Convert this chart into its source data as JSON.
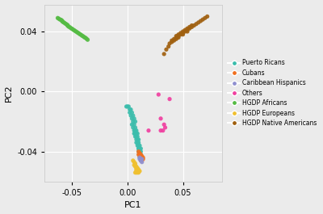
{
  "title": "",
  "xlabel": "PC1",
  "ylabel": "PC2",
  "xlim": [
    -0.075,
    0.085
  ],
  "ylim": [
    -0.06,
    0.058
  ],
  "xticks": [
    -0.05,
    0.0,
    0.05
  ],
  "yticks": [
    -0.04,
    0.0,
    0.04
  ],
  "background_color": "#ebebeb",
  "grid_color": "#ffffff",
  "groups": {
    "Puerto Ricans": {
      "color": "#3cbdac",
      "points": [
        [
          0.003,
          -0.016
        ],
        [
          0.004,
          -0.018
        ],
        [
          0.005,
          -0.02
        ],
        [
          0.004,
          -0.022
        ],
        [
          0.005,
          -0.024
        ],
        [
          0.006,
          -0.026
        ],
        [
          0.006,
          -0.028
        ],
        [
          0.007,
          -0.028
        ],
        [
          0.007,
          -0.03
        ],
        [
          0.008,
          -0.03
        ],
        [
          0.008,
          -0.032
        ],
        [
          0.009,
          -0.032
        ],
        [
          0.009,
          -0.034
        ],
        [
          0.01,
          -0.034
        ],
        [
          0.01,
          -0.036
        ],
        [
          0.01,
          -0.038
        ],
        [
          0.011,
          -0.038
        ],
        [
          0.011,
          -0.04
        ],
        [
          0.011,
          -0.042
        ],
        [
          0.012,
          -0.042
        ],
        [
          0.002,
          -0.012
        ],
        [
          0.001,
          -0.01
        ],
        [
          0.0,
          -0.01
        ],
        [
          -0.001,
          -0.01
        ],
        [
          0.002,
          -0.014
        ],
        [
          0.003,
          -0.012
        ],
        [
          0.004,
          -0.014
        ],
        [
          0.005,
          -0.016
        ],
        [
          0.006,
          -0.018
        ],
        [
          0.007,
          -0.02
        ],
        [
          0.007,
          -0.024
        ],
        [
          0.008,
          -0.026
        ],
        [
          0.008,
          -0.028
        ],
        [
          0.009,
          -0.028
        ],
        [
          0.009,
          -0.03
        ],
        [
          0.01,
          -0.032
        ],
        [
          0.01,
          -0.04
        ],
        [
          0.011,
          -0.036
        ],
        [
          0.012,
          -0.038
        ],
        [
          0.011,
          -0.044
        ],
        [
          0.012,
          -0.04
        ],
        [
          0.006,
          -0.022
        ],
        [
          0.007,
          -0.026
        ],
        [
          0.008,
          -0.034
        ],
        [
          0.009,
          -0.036
        ],
        [
          0.01,
          -0.038
        ]
      ]
    },
    "Cubans": {
      "color": "#f07020",
      "points": [
        [
          0.01,
          -0.04
        ],
        [
          0.011,
          -0.041
        ],
        [
          0.012,
          -0.042
        ],
        [
          0.012,
          -0.043
        ],
        [
          0.013,
          -0.043
        ],
        [
          0.013,
          -0.044
        ],
        [
          0.014,
          -0.044
        ],
        [
          0.013,
          -0.045
        ],
        [
          0.014,
          -0.045
        ],
        [
          0.011,
          -0.042
        ],
        [
          0.012,
          -0.044
        ],
        [
          0.013,
          -0.046
        ],
        [
          0.012,
          -0.046
        ],
        [
          0.011,
          -0.043
        ],
        [
          0.01,
          -0.042
        ]
      ]
    },
    "Caribbean Hispanics": {
      "color": "#9090d0",
      "points": [
        [
          0.011,
          -0.044
        ],
        [
          0.012,
          -0.045
        ],
        [
          0.012,
          -0.046
        ],
        [
          0.013,
          -0.045
        ],
        [
          0.011,
          -0.045
        ],
        [
          0.013,
          -0.047
        ]
      ]
    },
    "Others": {
      "color": "#f040a0",
      "points": [
        [
          0.028,
          -0.002
        ],
        [
          0.038,
          -0.005
        ],
        [
          0.03,
          -0.018
        ],
        [
          0.033,
          -0.022
        ],
        [
          0.034,
          -0.024
        ],
        [
          0.032,
          -0.026
        ],
        [
          0.03,
          -0.026
        ],
        [
          0.019,
          -0.026
        ]
      ]
    },
    "HGDP Africans": {
      "color": "#55bb44",
      "points": [
        [
          -0.063,
          0.049
        ],
        [
          -0.062,
          0.0485
        ],
        [
          -0.061,
          0.048
        ],
        [
          -0.06,
          0.0478
        ],
        [
          -0.059,
          0.0472
        ],
        [
          -0.059,
          0.0468
        ],
        [
          -0.058,
          0.0462
        ],
        [
          -0.057,
          0.0458
        ],
        [
          -0.056,
          0.0452
        ],
        [
          -0.055,
          0.0448
        ],
        [
          -0.054,
          0.0442
        ],
        [
          -0.054,
          0.0438
        ],
        [
          -0.053,
          0.0432
        ],
        [
          -0.052,
          0.0428
        ],
        [
          -0.051,
          0.0422
        ],
        [
          -0.05,
          0.0418
        ],
        [
          -0.049,
          0.0412
        ],
        [
          -0.048,
          0.0408
        ],
        [
          -0.047,
          0.0402
        ],
        [
          -0.046,
          0.0398
        ],
        [
          -0.045,
          0.0392
        ],
        [
          -0.044,
          0.0388
        ],
        [
          -0.043,
          0.0382
        ],
        [
          -0.042,
          0.0378
        ],
        [
          -0.041,
          0.0372
        ],
        [
          -0.04,
          0.0368
        ],
        [
          -0.039,
          0.0362
        ],
        [
          -0.038,
          0.0358
        ],
        [
          -0.037,
          0.0352
        ],
        [
          -0.036,
          0.0345
        ]
      ]
    },
    "HGDP Europeans": {
      "color": "#f0c030",
      "points": [
        [
          0.005,
          -0.046
        ],
        [
          0.006,
          -0.047
        ],
        [
          0.007,
          -0.048
        ],
        [
          0.006,
          -0.049
        ],
        [
          0.007,
          -0.049
        ],
        [
          0.007,
          -0.05
        ],
        [
          0.008,
          -0.05
        ],
        [
          0.008,
          -0.051
        ],
        [
          0.009,
          -0.051
        ],
        [
          0.008,
          -0.052
        ],
        [
          0.009,
          -0.052
        ],
        [
          0.01,
          -0.052
        ],
        [
          0.009,
          -0.053
        ],
        [
          0.01,
          -0.053
        ],
        [
          0.011,
          -0.053
        ],
        [
          0.008,
          -0.053
        ],
        [
          0.007,
          -0.054
        ],
        [
          0.008,
          -0.054
        ],
        [
          0.009,
          -0.054
        ],
        [
          0.01,
          -0.054
        ]
      ]
    },
    "HGDP Native Americans": {
      "color": "#a06010",
      "points": [
        [
          0.033,
          0.025
        ],
        [
          0.035,
          0.028
        ],
        [
          0.037,
          0.03
        ],
        [
          0.038,
          0.032
        ],
        [
          0.04,
          0.033
        ],
        [
          0.042,
          0.034
        ],
        [
          0.042,
          0.035
        ],
        [
          0.044,
          0.036
        ],
        [
          0.044,
          0.037
        ],
        [
          0.046,
          0.037
        ],
        [
          0.046,
          0.038
        ],
        [
          0.048,
          0.038
        ],
        [
          0.048,
          0.039
        ],
        [
          0.05,
          0.039
        ],
        [
          0.05,
          0.04
        ],
        [
          0.052,
          0.04
        ],
        [
          0.052,
          0.041
        ],
        [
          0.054,
          0.041
        ],
        [
          0.054,
          0.042
        ],
        [
          0.056,
          0.042
        ],
        [
          0.056,
          0.043
        ],
        [
          0.058,
          0.043
        ],
        [
          0.058,
          0.044
        ],
        [
          0.06,
          0.044
        ],
        [
          0.062,
          0.045
        ],
        [
          0.064,
          0.046
        ],
        [
          0.066,
          0.047
        ],
        [
          0.068,
          0.048
        ],
        [
          0.07,
          0.049
        ],
        [
          0.072,
          0.05
        ],
        [
          0.04,
          0.034
        ],
        [
          0.044,
          0.035
        ],
        [
          0.046,
          0.036
        ],
        [
          0.05,
          0.038
        ],
        [
          0.054,
          0.04
        ]
      ]
    }
  }
}
